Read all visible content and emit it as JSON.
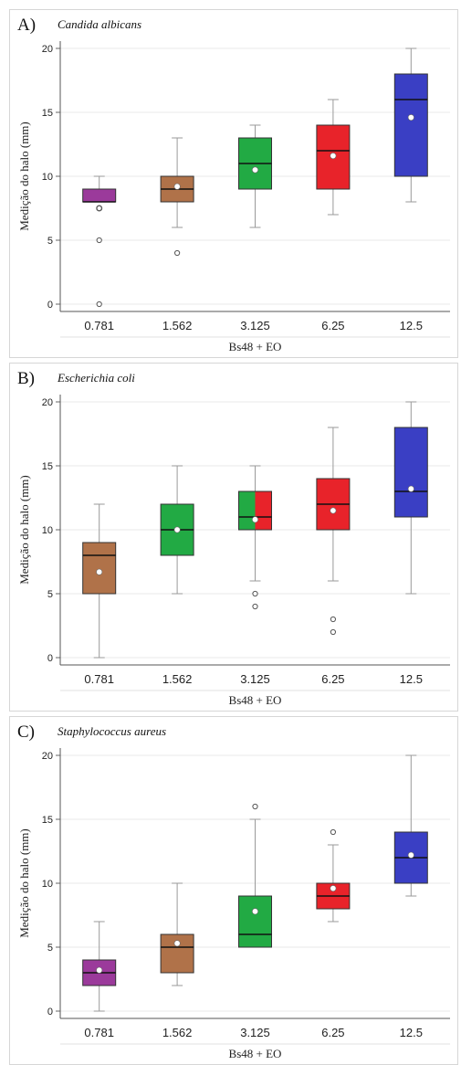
{
  "chart_data": [
    {
      "type": "box",
      "panel_label": "A)",
      "title": "Candida albicans",
      "xlabel": "Bs48 + EO",
      "ylabel": "Medição do halo (mm)",
      "ylim": [
        0,
        20
      ],
      "yticks": [
        "0",
        "5",
        "10",
        "15",
        "20"
      ],
      "categories": [
        "0.781",
        "1.562",
        "3.125",
        "6.25",
        "12.5"
      ],
      "boxes": [
        {
          "category": "0.781",
          "min": 8,
          "q1": 8,
          "median": 8,
          "q3": 9,
          "max": 10,
          "mean": 7.5,
          "outliers": [
            0,
            5,
            7.5
          ],
          "fill": "#9b3a9b"
        },
        {
          "category": "1.562",
          "min": 6,
          "q1": 8,
          "median": 9,
          "q3": 10,
          "max": 13,
          "mean": 9.2,
          "outliers": [
            4
          ],
          "fill": "#b07249"
        },
        {
          "category": "3.125",
          "min": 6,
          "q1": 9,
          "median": 11,
          "q3": 13,
          "max": 14,
          "mean": 10.5,
          "outliers": [],
          "fill": "#22aa44"
        },
        {
          "category": "6.25",
          "min": 7,
          "q1": 9,
          "median": 12,
          "q3": 14,
          "max": 16,
          "mean": 11.6,
          "outliers": [],
          "fill": "#e8232a"
        },
        {
          "category": "12.5",
          "min": 8,
          "q1": 10,
          "median": 16,
          "q3": 18,
          "max": 20,
          "mean": 14.6,
          "outliers": [],
          "fill": "#3a3fc4"
        }
      ]
    },
    {
      "type": "box",
      "panel_label": "B)",
      "title": "Escherichia coli",
      "xlabel": "Bs48 + EO",
      "ylabel": "Medição do halo (mm)",
      "ylim": [
        0,
        20
      ],
      "yticks": [
        "0",
        "5",
        "10",
        "15",
        "20"
      ],
      "categories": [
        "0.781",
        "1.562",
        "3.125",
        "6.25",
        "12.5"
      ],
      "boxes": [
        {
          "category": "0.781",
          "min": 0,
          "q1": 5,
          "median": 8,
          "q3": 9,
          "max": 12,
          "mean": 6.7,
          "outliers": [],
          "fill": "#b07249"
        },
        {
          "category": "1.562",
          "min": 5,
          "q1": 8,
          "median": 10,
          "q3": 12,
          "max": 15,
          "mean": 10,
          "outliers": [],
          "fill": "#22aa44"
        },
        {
          "category": "3.125",
          "min": 6,
          "q1": 10,
          "median": 11,
          "q3": 13,
          "max": 15,
          "mean": 10.8,
          "outliers": [
            4,
            5
          ],
          "fill": "#22aa44",
          "fill2": "#e8232a"
        },
        {
          "category": "6.25",
          "min": 6,
          "q1": 10,
          "median": 12,
          "q3": 14,
          "max": 18,
          "mean": 11.5,
          "outliers": [
            2,
            3
          ],
          "fill": "#e8232a"
        },
        {
          "category": "12.5",
          "min": 5,
          "q1": 11,
          "median": 13,
          "q3": 18,
          "max": 20,
          "mean": 13.2,
          "outliers": [],
          "fill": "#3a3fc4"
        }
      ]
    },
    {
      "type": "box",
      "panel_label": "C)",
      "title": "Staphylococcus aureus",
      "xlabel": "Bs48 + EO",
      "ylabel": "Medição do halo (mm)",
      "ylim": [
        0,
        20
      ],
      "yticks": [
        "0",
        "5",
        "10",
        "15",
        "20"
      ],
      "categories": [
        "0.781",
        "1.562",
        "3.125",
        "6.25",
        "12.5"
      ],
      "boxes": [
        {
          "category": "0.781",
          "min": 0,
          "q1": 2,
          "median": 3,
          "q3": 4,
          "max": 7,
          "mean": 3.2,
          "outliers": [],
          "fill": "#9b3a9b"
        },
        {
          "category": "1.562",
          "min": 2,
          "q1": 3,
          "median": 5,
          "q3": 6,
          "max": 10,
          "mean": 5.3,
          "outliers": [],
          "fill": "#b07249"
        },
        {
          "category": "3.125",
          "min": 5,
          "q1": 5,
          "median": 6,
          "q3": 9,
          "max": 15,
          "mean": 7.8,
          "outliers": [
            16
          ],
          "fill": "#22aa44"
        },
        {
          "category": "6.25",
          "min": 7,
          "q1": 8,
          "median": 9,
          "q3": 10,
          "max": 13,
          "mean": 9.6,
          "outliers": [
            14
          ],
          "fill": "#e8232a"
        },
        {
          "category": "12.5",
          "min": 9,
          "q1": 10,
          "median": 12,
          "q3": 14,
          "max": 20,
          "mean": 12.2,
          "outliers": [],
          "fill": "#3a3fc4"
        }
      ]
    }
  ]
}
